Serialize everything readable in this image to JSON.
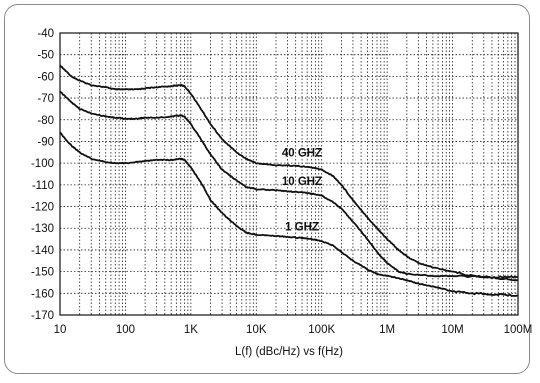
{
  "chart_data": {
    "type": "line",
    "title": "",
    "xlabel": "L(f) (dBc/Hz) vs f(Hz)",
    "ylabel": "",
    "x_scale": "log",
    "xlim": [
      10,
      100000000
    ],
    "ylim": [
      -170,
      -40
    ],
    "x_ticks": [
      {
        "value": 10,
        "label": "10"
      },
      {
        "value": 100,
        "label": "100"
      },
      {
        "value": 1000,
        "label": "1K"
      },
      {
        "value": 10000,
        "label": "10K"
      },
      {
        "value": 100000,
        "label": "100K"
      },
      {
        "value": 1000000,
        "label": "1M"
      },
      {
        "value": 10000000,
        "label": "10M"
      },
      {
        "value": 100000000,
        "label": "100M"
      }
    ],
    "y_ticks": [
      -40,
      -50,
      -60,
      -70,
      -80,
      -90,
      -100,
      -110,
      -120,
      -130,
      -140,
      -150,
      -160,
      -170
    ],
    "grid": true,
    "grid_style": "dotted",
    "series": [
      {
        "name": "40 GHZ",
        "x": [
          10,
          15,
          20,
          30,
          50,
          70,
          100,
          150,
          200,
          300,
          500,
          700,
          800,
          1000,
          1500,
          2000,
          3000,
          5000,
          7000,
          10000,
          20000,
          30000,
          50000,
          70000,
          100000,
          150000,
          200000,
          300000,
          500000,
          700000,
          1000000,
          1500000,
          2000000,
          3000000,
          5000000,
          10000000,
          20000000,
          50000000,
          100000000
        ],
        "values": [
          -55,
          -60,
          -62,
          -64,
          -65,
          -66,
          -66,
          -66,
          -65.5,
          -65,
          -64.5,
          -64,
          -64.5,
          -68,
          -76,
          -82,
          -89,
          -95,
          -98,
          -100,
          -101,
          -101,
          -101.5,
          -102,
          -103,
          -106,
          -110,
          -117,
          -125,
          -130,
          -135,
          -140,
          -143,
          -146,
          -148,
          -150,
          -152,
          -153,
          -154
        ]
      },
      {
        "name": "10 GHZ",
        "x": [
          10,
          15,
          20,
          30,
          50,
          70,
          100,
          150,
          200,
          300,
          500,
          700,
          800,
          1000,
          1500,
          2000,
          3000,
          5000,
          7000,
          10000,
          20000,
          30000,
          50000,
          70000,
          100000,
          150000,
          200000,
          300000,
          500000,
          700000,
          1000000,
          1500000,
          2000000,
          5000000,
          10000000,
          50000000,
          100000000
        ],
        "values": [
          -67,
          -72,
          -75,
          -77,
          -78.5,
          -79,
          -79.5,
          -79.5,
          -79,
          -79,
          -78.5,
          -78,
          -78.5,
          -82,
          -90,
          -96,
          -103,
          -108,
          -111,
          -112,
          -112.5,
          -113,
          -113.5,
          -114,
          -115,
          -118,
          -121,
          -127,
          -135,
          -141,
          -146,
          -150,
          -151,
          -152,
          -152,
          -152.5,
          -152.5
        ]
      },
      {
        "name": "1 GHZ",
        "x": [
          10,
          15,
          20,
          30,
          50,
          70,
          100,
          150,
          200,
          300,
          500,
          700,
          800,
          1000,
          1500,
          2000,
          3000,
          5000,
          7000,
          10000,
          20000,
          30000,
          50000,
          70000,
          100000,
          150000,
          200000,
          300000,
          500000,
          700000,
          1000000,
          1500000,
          2000000,
          3000000,
          5000000,
          10000000,
          20000000,
          50000000,
          100000000
        ],
        "values": [
          -86,
          -92,
          -95,
          -98,
          -99.5,
          -100,
          -100,
          -99.5,
          -99,
          -98.5,
          -98.5,
          -98,
          -98.5,
          -102,
          -110,
          -117,
          -123,
          -129,
          -132,
          -133,
          -133.5,
          -134,
          -134.5,
          -135,
          -136,
          -138,
          -141,
          -145,
          -149,
          -151,
          -152,
          -153,
          -154,
          -155.5,
          -157,
          -159,
          -160,
          -160.5,
          -161
        ]
      }
    ],
    "annotations": [
      {
        "text": "40 GHZ",
        "x": 50000,
        "y": -97
      },
      {
        "text": "10 GHZ",
        "x": 50000,
        "y": -110
      },
      {
        "text": "1 GHZ",
        "x": 50000,
        "y": -131
      }
    ]
  }
}
